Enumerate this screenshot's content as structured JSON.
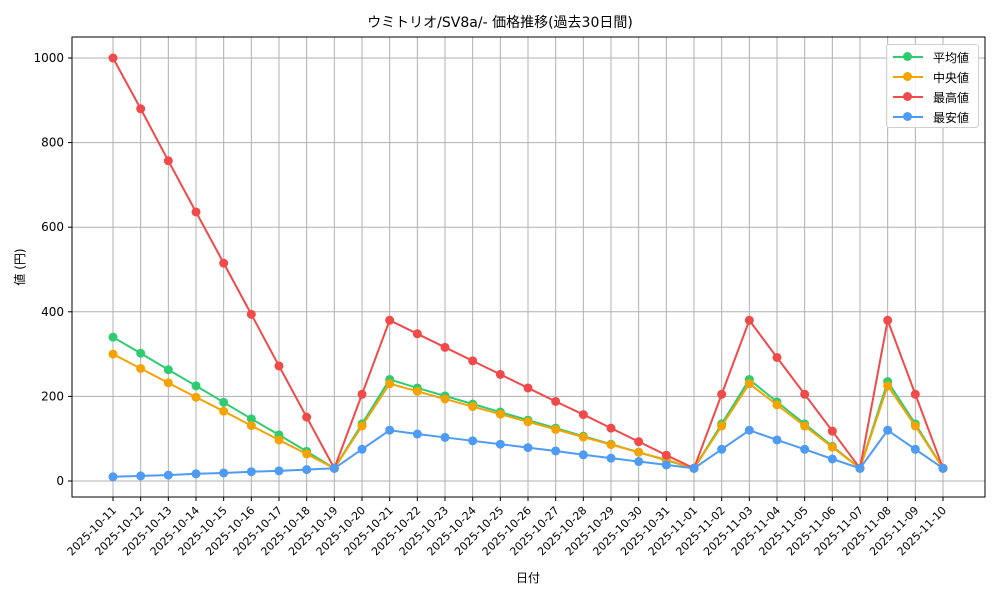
{
  "chart_data": {
    "type": "line",
    "title": "ウミトリオ/SV8a/- 価格推移(過去30日間)",
    "xlabel": "日付",
    "ylabel": "値 (円)",
    "ylim": [
      -40,
      1050
    ],
    "yticks": [
      0,
      200,
      400,
      600,
      800,
      1000
    ],
    "grid": true,
    "legend_position": "upper right",
    "categories": [
      "2025-10-11",
      "2025-10-12",
      "2025-10-13",
      "2025-10-14",
      "2025-10-15",
      "2025-10-16",
      "2025-10-17",
      "2025-10-18",
      "2025-10-19",
      "2025-10-20",
      "2025-10-21",
      "2025-10-22",
      "2025-10-23",
      "2025-10-24",
      "2025-10-25",
      "2025-10-26",
      "2025-10-27",
      "2025-10-28",
      "2025-10-29",
      "2025-10-30",
      "2025-10-31",
      "2025-11-01",
      "2025-11-02",
      "2025-11-03",
      "2025-11-04",
      "2025-11-05",
      "2025-11-06",
      "2025-11-07",
      "2025-11-08",
      "2025-11-09",
      "2025-11-10"
    ],
    "series": [
      {
        "name": "平均値",
        "color": "#2ecc71",
        "values": [
          340,
          302,
          263,
          225,
          186,
          147,
          109,
          70,
          30,
          135,
          240,
          220,
          201,
          182,
          163,
          144,
          125,
          106,
          87,
          68,
          49,
          30,
          135,
          240,
          187,
          135,
          82,
          30,
          235,
          135,
          30
        ]
      },
      {
        "name": "中央値",
        "color": "#f5a300",
        "values": [
          300,
          266,
          232,
          198,
          165,
          131,
          97,
          64,
          30,
          130,
          230,
          212,
          194,
          176,
          158,
          140,
          122,
          104,
          86,
          68,
          50,
          30,
          130,
          230,
          180,
          130,
          80,
          30,
          225,
          130,
          30
        ]
      },
      {
        "name": "最高値",
        "color": "#f04a4a",
        "values": [
          1000,
          880,
          757,
          636,
          515,
          394,
          272,
          151,
          30,
          205,
          380,
          348,
          316,
          284,
          252,
          220,
          188,
          157,
          125,
          93,
          61,
          30,
          205,
          380,
          292,
          205,
          118,
          30,
          380,
          205,
          30
        ]
      },
      {
        "name": "最安値",
        "color": "#4d9bf5",
        "values": [
          10,
          12,
          14,
          17,
          19,
          22,
          24,
          27,
          30,
          75,
          120,
          111,
          103,
          95,
          87,
          79,
          71,
          62,
          54,
          46,
          38,
          30,
          75,
          120,
          97,
          75,
          52,
          30,
          120,
          75,
          30
        ]
      }
    ]
  }
}
